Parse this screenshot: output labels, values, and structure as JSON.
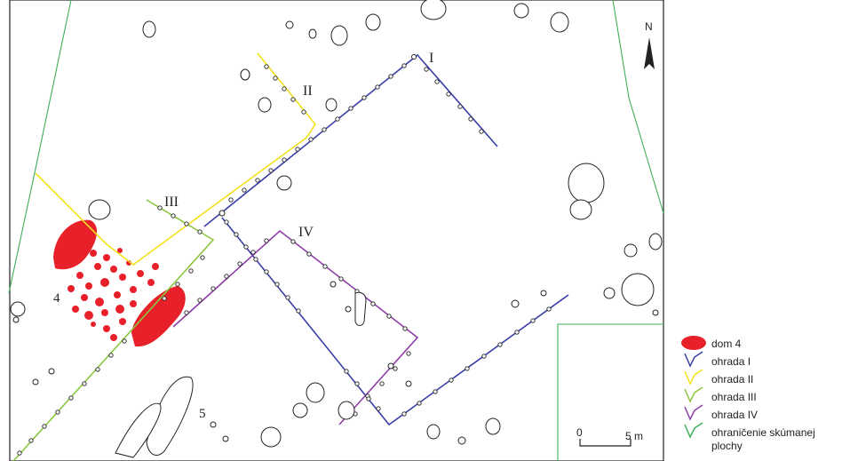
{
  "map": {
    "labels": {
      "enclosure_1": "I",
      "enclosure_2": "II",
      "enclosure_3": "III",
      "enclosure_4": "IV",
      "house_4": "4",
      "feature_5": "5"
    },
    "north": "N",
    "scale": {
      "start": "0",
      "end": "5 m"
    }
  },
  "legend": {
    "items": [
      {
        "label": "dom 4",
        "color": "#e8202a"
      },
      {
        "label": "ohrada I",
        "color": "#3a3fa8"
      },
      {
        "label": "ohrada II",
        "color": "#f2e11a"
      },
      {
        "label": "ohrada III",
        "color": "#8cc63f"
      },
      {
        "label": "ohrada IV",
        "color": "#8e3fa8"
      },
      {
        "label": "ohraničenie skúmanej",
        "label2": "plochy",
        "color": "#3fae5a"
      }
    ]
  }
}
